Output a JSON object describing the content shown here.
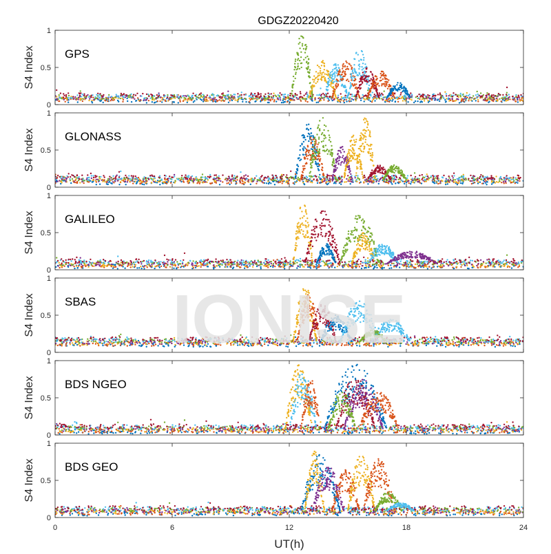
{
  "chart_data": {
    "type": "scatter",
    "title": "GDGZ20220420",
    "xlabel": "UT(h)",
    "ylabel": "S4 Index",
    "xlim": [
      0,
      24
    ],
    "ylim": [
      0,
      1
    ],
    "xticks": [
      "0",
      "6",
      "12",
      "18",
      "24"
    ],
    "yticks": [
      "0",
      "0.5",
      "1"
    ],
    "grid": false,
    "watermark": "IONISE",
    "colors": [
      "#0072BD",
      "#D95319",
      "#EDB120",
      "#7E2F8E",
      "#77AC30",
      "#4DBEEE",
      "#A2142F"
    ],
    "panels": [
      {
        "name": "GPS",
        "baseline": 0.09,
        "events": [
          {
            "start": 12.1,
            "end": 13.2,
            "peak": 0.95,
            "color": "#77AC30"
          },
          {
            "start": 13.0,
            "end": 14.4,
            "peak": 0.6,
            "color": "#EDB120"
          },
          {
            "start": 13.8,
            "end": 15.0,
            "peak": 0.55,
            "color": "#4DBEEE"
          },
          {
            "start": 14.2,
            "end": 15.6,
            "peak": 0.6,
            "color": "#D95319"
          },
          {
            "start": 15.0,
            "end": 16.2,
            "peak": 0.75,
            "color": "#4DBEEE"
          },
          {
            "start": 15.4,
            "end": 16.6,
            "peak": 0.5,
            "color": "#A2142F"
          },
          {
            "start": 16.0,
            "end": 17.4,
            "peak": 0.45,
            "color": "#D95319"
          },
          {
            "start": 17.0,
            "end": 18.2,
            "peak": 0.3,
            "color": "#0072BD"
          }
        ]
      },
      {
        "name": "GLONASS",
        "baseline": 0.1,
        "events": [
          {
            "start": 12.3,
            "end": 13.6,
            "peak": 0.85,
            "color": "#0072BD"
          },
          {
            "start": 12.6,
            "end": 13.8,
            "peak": 0.7,
            "color": "#D95319"
          },
          {
            "start": 13.0,
            "end": 14.4,
            "peak": 0.95,
            "color": "#77AC30"
          },
          {
            "start": 14.2,
            "end": 15.2,
            "peak": 0.55,
            "color": "#7E2F8E"
          },
          {
            "start": 14.8,
            "end": 15.8,
            "peak": 0.7,
            "color": "#EDB120"
          },
          {
            "start": 15.4,
            "end": 16.4,
            "peak": 0.95,
            "color": "#EDB120"
          },
          {
            "start": 16.0,
            "end": 17.2,
            "peak": 0.3,
            "color": "#A2142F"
          },
          {
            "start": 16.8,
            "end": 18.0,
            "peak": 0.3,
            "color": "#77AC30"
          }
        ]
      },
      {
        "name": "GALILEO",
        "baseline": 0.08,
        "events": [
          {
            "start": 12.2,
            "end": 13.2,
            "peak": 0.9,
            "color": "#EDB120"
          },
          {
            "start": 12.8,
            "end": 14.6,
            "peak": 0.8,
            "color": "#A2142F"
          },
          {
            "start": 13.4,
            "end": 14.4,
            "peak": 0.35,
            "color": "#0072BD"
          },
          {
            "start": 14.6,
            "end": 16.6,
            "peak": 0.75,
            "color": "#77AC30"
          },
          {
            "start": 15.2,
            "end": 16.4,
            "peak": 0.5,
            "color": "#EDB120"
          },
          {
            "start": 16.0,
            "end": 17.6,
            "peak": 0.35,
            "color": "#4DBEEE"
          },
          {
            "start": 17.0,
            "end": 19.6,
            "peak": 0.25,
            "color": "#7E2F8E"
          }
        ]
      },
      {
        "name": "SBAS",
        "baseline": 0.14,
        "events": [
          {
            "start": 12.2,
            "end": 13.4,
            "peak": 0.9,
            "color": "#EDB120"
          },
          {
            "start": 12.4,
            "end": 13.6,
            "peak": 0.8,
            "color": "#D95319"
          },
          {
            "start": 13.0,
            "end": 14.4,
            "peak": 0.65,
            "color": "#A2142F"
          },
          {
            "start": 13.6,
            "end": 15.2,
            "peak": 0.5,
            "color": "#0072BD"
          },
          {
            "start": 14.6,
            "end": 16.6,
            "peak": 0.7,
            "color": "#4DBEEE"
          },
          {
            "start": 16.2,
            "end": 18.2,
            "peak": 0.45,
            "color": "#4DBEEE"
          },
          {
            "start": 15.6,
            "end": 17.0,
            "peak": 0.3,
            "color": "#77AC30"
          }
        ]
      },
      {
        "name": "BDS NGEO",
        "baseline": 0.08,
        "events": [
          {
            "start": 11.8,
            "end": 13.2,
            "peak": 0.95,
            "color": "#EDB120"
          },
          {
            "start": 12.0,
            "end": 13.4,
            "peak": 0.85,
            "color": "#4DBEEE"
          },
          {
            "start": 12.6,
            "end": 13.6,
            "peak": 0.75,
            "color": "#D95319"
          },
          {
            "start": 13.8,
            "end": 17.0,
            "peak": 0.95,
            "color": "#0072BD"
          },
          {
            "start": 14.4,
            "end": 16.4,
            "peak": 0.8,
            "color": "#A2142F"
          },
          {
            "start": 14.8,
            "end": 16.8,
            "peak": 0.75,
            "color": "#7E2F8E"
          },
          {
            "start": 15.6,
            "end": 17.6,
            "peak": 0.6,
            "color": "#D95319"
          },
          {
            "start": 14.0,
            "end": 15.4,
            "peak": 0.6,
            "color": "#77AC30"
          }
        ]
      },
      {
        "name": "BDS GEO",
        "baseline": 0.09,
        "events": [
          {
            "start": 12.6,
            "end": 14.6,
            "peak": 0.85,
            "color": "#0072BD"
          },
          {
            "start": 12.8,
            "end": 13.8,
            "peak": 0.9,
            "color": "#EDB120"
          },
          {
            "start": 13.2,
            "end": 14.8,
            "peak": 0.7,
            "color": "#7E2F8E"
          },
          {
            "start": 14.2,
            "end": 15.6,
            "peak": 0.65,
            "color": "#D95319"
          },
          {
            "start": 15.0,
            "end": 16.4,
            "peak": 0.85,
            "color": "#EDB120"
          },
          {
            "start": 15.8,
            "end": 17.4,
            "peak": 0.8,
            "color": "#D95319"
          },
          {
            "start": 16.4,
            "end": 17.8,
            "peak": 0.35,
            "color": "#77AC30"
          },
          {
            "start": 17.0,
            "end": 18.4,
            "peak": 0.2,
            "color": "#4DBEEE"
          }
        ]
      }
    ]
  }
}
